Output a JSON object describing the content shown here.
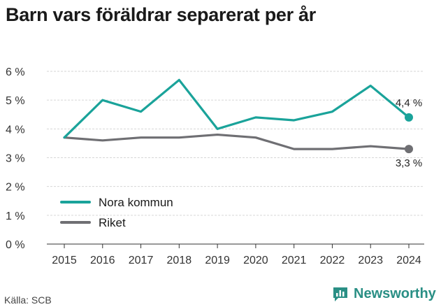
{
  "title": "Barn vars föräldrar separerat per år",
  "source": "Källa: SCB",
  "brand": {
    "name": "Newsworthy",
    "icon": "newsworthy-chart-icon"
  },
  "colors": {
    "nora": "#1aa39a",
    "riket": "#6f6f73",
    "grid": "#d6d6d6",
    "brand": "#2a8f85"
  },
  "chart_data": {
    "type": "line",
    "title": "Barn vars föräldrar separerat per år",
    "categories": [
      "2015",
      "2016",
      "2017",
      "2018",
      "2019",
      "2020",
      "2021",
      "2022",
      "2023",
      "2024"
    ],
    "y_ticks": [
      "0 %",
      "1 %",
      "2 %",
      "3 %",
      "4 %",
      "5 %",
      "6 %"
    ],
    "ylim": [
      0,
      6
    ],
    "grid": "horizontal",
    "legend_position": "left",
    "series": [
      {
        "name": "Nora kommun",
        "values": [
          3.7,
          5.0,
          4.6,
          5.7,
          4.0,
          4.4,
          4.3,
          4.6,
          5.5,
          4.4
        ],
        "end_label": "4,4 %"
      },
      {
        "name": "Riket",
        "values": [
          3.7,
          3.6,
          3.7,
          3.7,
          3.8,
          3.7,
          3.3,
          3.3,
          3.4,
          3.3
        ],
        "end_label": "3,3 %"
      }
    ]
  }
}
